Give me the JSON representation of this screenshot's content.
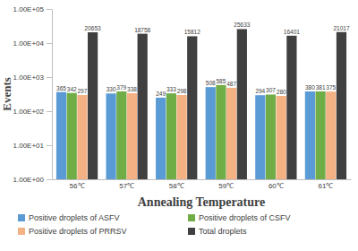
{
  "chart_data": {
    "type": "bar",
    "x_label": "Annealing Temperature",
    "y_label": "Events",
    "categories": [
      "56℃",
      "57℃",
      "58℃",
      "59℃",
      "60℃",
      "61℃"
    ],
    "series": [
      {
        "name": "Positive droplets of ASFV",
        "color": "#5B9BD5",
        "values": [
          365,
          330,
          249,
          508,
          294,
          380
        ]
      },
      {
        "name": "Positive droplets of CSFV",
        "color": "#70AD47",
        "values": [
          342,
          379,
          333,
          585,
          307,
          381
        ]
      },
      {
        "name": "Positive droplets of PRRSV",
        "color": "#F4B183",
        "values": [
          297,
          338,
          298,
          487,
          280,
          375
        ]
      },
      {
        "name": "Total droplets",
        "color": "#404040",
        "values": [
          20653,
          18758,
          15812,
          25633,
          16401,
          21017
        ]
      }
    ],
    "ylim": [
      1,
      100000
    ],
    "yticks": [
      {
        "value": 1,
        "label": "1.00E+00"
      },
      {
        "value": 10,
        "label": "1.00E+01"
      },
      {
        "value": 100,
        "label": "1.00E+02"
      },
      {
        "value": 1000,
        "label": "1.00E+03"
      },
      {
        "value": 10000,
        "label": "1.00E+04"
      },
      {
        "value": 100000,
        "label": "1.00E+05"
      }
    ],
    "log": "y",
    "grid": false,
    "legend": "bottom",
    "data_labels": true
  }
}
